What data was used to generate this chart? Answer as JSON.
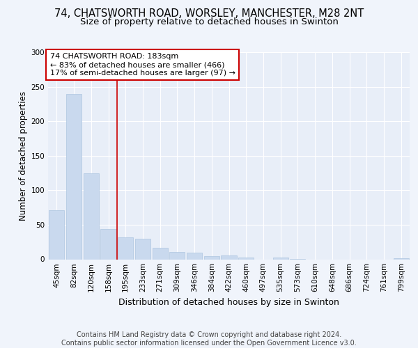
{
  "title1": "74, CHATSWORTH ROAD, WORSLEY, MANCHESTER, M28 2NT",
  "title2": "Size of property relative to detached houses in Swinton",
  "xlabel": "Distribution of detached houses by size in Swinton",
  "ylabel": "Number of detached properties",
  "categories": [
    "45sqm",
    "82sqm",
    "120sqm",
    "158sqm",
    "195sqm",
    "233sqm",
    "271sqm",
    "309sqm",
    "346sqm",
    "384sqm",
    "422sqm",
    "460sqm",
    "497sqm",
    "535sqm",
    "573sqm",
    "610sqm",
    "648sqm",
    "686sqm",
    "724sqm",
    "761sqm",
    "799sqm"
  ],
  "values": [
    71,
    239,
    125,
    44,
    32,
    30,
    17,
    11,
    10,
    5,
    6,
    3,
    0,
    3,
    1,
    0,
    0,
    0,
    0,
    0,
    2
  ],
  "bar_color": "#c9d9ee",
  "bar_edge_color": "#aec6e0",
  "vline_x": 3.5,
  "vline_color": "#cc0000",
  "annotation_text": "74 CHATSWORTH ROAD: 183sqm\n← 83% of detached houses are smaller (466)\n17% of semi-detached houses are larger (97) →",
  "annotation_box_color": "#ffffff",
  "annotation_box_edge_color": "#cc0000",
  "ylim": [
    0,
    300
  ],
  "yticks": [
    0,
    50,
    100,
    150,
    200,
    250,
    300
  ],
  "footer_text": "Contains HM Land Registry data © Crown copyright and database right 2024.\nContains public sector information licensed under the Open Government Licence v3.0.",
  "background_color": "#f0f4fb",
  "plot_background_color": "#e8eef8",
  "grid_color": "#ffffff",
  "title1_fontsize": 10.5,
  "title2_fontsize": 9.5,
  "xlabel_fontsize": 9,
  "ylabel_fontsize": 8.5,
  "annotation_fontsize": 8,
  "footer_fontsize": 7,
  "tick_fontsize": 7.5
}
